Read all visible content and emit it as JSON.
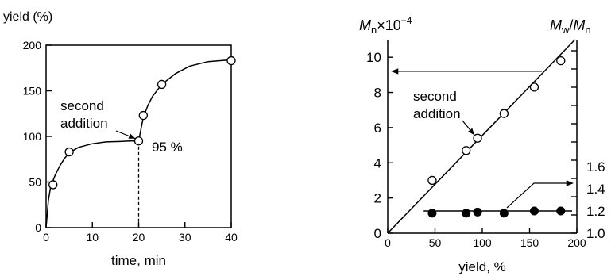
{
  "chart_data": [
    {
      "type": "scatter",
      "ylabel": "yield (%)",
      "xlabel": "time, min",
      "xlim": [
        0,
        40
      ],
      "ylim": [
        0,
        200
      ],
      "xticks": [
        "0",
        "10",
        "20",
        "30",
        "40"
      ],
      "yticks": [
        "0",
        "50",
        "100",
        "150",
        "200"
      ],
      "series": [
        {
          "x": [
            1.5,
            5,
            20,
            21,
            25,
            40
          ],
          "y": [
            47,
            83,
            95,
            123,
            157,
            183
          ]
        }
      ],
      "curve": [
        [
          0,
          0
        ],
        [
          0.5,
          30
        ],
        [
          1,
          45
        ],
        [
          2,
          58
        ],
        [
          3,
          68
        ],
        [
          4,
          76
        ],
        [
          5,
          82
        ],
        [
          7,
          88
        ],
        [
          10,
          92
        ],
        [
          13,
          94
        ],
        [
          16,
          94.5
        ],
        [
          18,
          95
        ],
        [
          20,
          95
        ],
        [
          20.5,
          108
        ],
        [
          21,
          121
        ],
        [
          22,
          134
        ],
        [
          23,
          144
        ],
        [
          25,
          157
        ],
        [
          28,
          169
        ],
        [
          31,
          177
        ],
        [
          35,
          182
        ],
        [
          40,
          184
        ]
      ],
      "annotations": {
        "second_addition": "second\naddition",
        "pct_95": "95 %"
      },
      "dashed_drop_x": 20,
      "grid": false
    },
    {
      "type": "scatter",
      "ylabel_left": "Mn×10−4",
      "ylabel_right": "Mw/Mn",
      "xlabel": "yield, %",
      "xlim": [
        0,
        200
      ],
      "ylim_left": [
        0,
        11
      ],
      "ylim_right": [
        1.0,
        1.6
      ],
      "xticks": [
        "0",
        "50",
        "100",
        "150",
        "200"
      ],
      "yticks_left": [
        "0",
        "2",
        "4",
        "6",
        "8",
        "10"
      ],
      "yticks_right": [
        "1.0",
        "1.2",
        "1.4",
        "1.6"
      ],
      "series": [
        {
          "name_key": "Mn",
          "marker": "open-circle",
          "axis": "left",
          "x": [
            47,
            83,
            95,
            123,
            155,
            183
          ],
          "y": [
            3.0,
            4.7,
            5.4,
            6.8,
            8.3,
            9.8
          ]
        },
        {
          "name_key": "Mw/Mn",
          "marker": "filled-circle",
          "axis": "right",
          "x": [
            47,
            83,
            95,
            123,
            155,
            183
          ],
          "y": [
            1.18,
            1.18,
            1.19,
            1.18,
            1.2,
            1.2
          ]
        }
      ],
      "fit_line": {
        "from": [
          0,
          0
        ],
        "to": [
          198,
          11
        ]
      },
      "ratio_line": {
        "from_x": 38,
        "to_x": 195,
        "y": 1.2
      },
      "annotations": {
        "second_addition": "second\naddition"
      },
      "grid": false
    }
  ]
}
